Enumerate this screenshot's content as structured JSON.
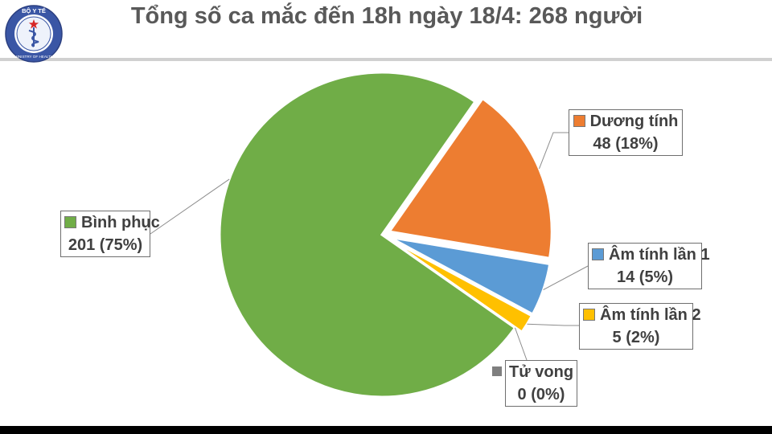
{
  "logo": {
    "top_text": "BỘ Y TẾ",
    "bottom_text": "MINISTRY OF HEALTH"
  },
  "chart_data": {
    "type": "pie",
    "title": "Tổng số ca mắc đến 18h ngày 18/4: 268 người",
    "total": 268,
    "slices": [
      {
        "name": "Dương tính",
        "value": 48,
        "percent_label": "48 (18%)",
        "color": "#ed7d31",
        "exploded": true
      },
      {
        "name": "Âm tính lần 1",
        "value": 14,
        "percent_label": "14 (5%)",
        "color": "#5b9bd5",
        "exploded": true
      },
      {
        "name": "Âm tính lần 2",
        "value": 5,
        "percent_label": "5 (2%)",
        "color": "#ffc000",
        "exploded": true
      },
      {
        "name": "Tử vong",
        "value": 0,
        "percent_label": "0 (0%)",
        "color": "#7f7f7f",
        "exploded": false
      },
      {
        "name": "Bình phục",
        "value": 201,
        "percent_label": "201 (75%)",
        "color": "#70ad47",
        "exploded": false
      }
    ],
    "legend": "none",
    "data_labels": "callouts"
  }
}
